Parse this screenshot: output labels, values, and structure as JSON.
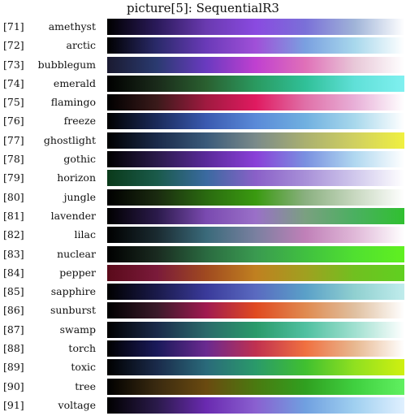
{
  "title": "picture[5]:  SequentialR3",
  "rows": [
    {
      "index": "[71]",
      "name": "amethyst",
      "colors": [
        "#000000",
        "#2a1a5a",
        "#6a3ab0",
        "#8a4ae0",
        "#7a70d8",
        "#a0b4d8",
        "#ffffff"
      ]
    },
    {
      "index": "[72]",
      "name": "arctic",
      "colors": [
        "#000000",
        "#2a2a6a",
        "#6a3ab8",
        "#a050d8",
        "#7aa0e0",
        "#a8d8ec",
        "#ffffff"
      ]
    },
    {
      "index": "[73]",
      "name": "bubblegum",
      "colors": [
        "#1a1a30",
        "#2a3a70",
        "#6a3ac0",
        "#c040d0",
        "#e070b8",
        "#e8c8d8",
        "#ffffff"
      ]
    },
    {
      "index": "[74]",
      "name": "emerald",
      "colors": [
        "#000000",
        "#1a2a1a",
        "#2a6030",
        "#2a9a60",
        "#30c098",
        "#60e0d8",
        "#80f0f0"
      ]
    },
    {
      "index": "[75]",
      "name": "flamingo",
      "colors": [
        "#000000",
        "#3a1a1a",
        "#a01a40",
        "#e01a60",
        "#e070a8",
        "#e8b0d8",
        "#ffffff"
      ]
    },
    {
      "index": "[76]",
      "name": "freeze",
      "colors": [
        "#000000",
        "#1a2a5a",
        "#3a5ab0",
        "#5a8ad8",
        "#70b0e0",
        "#a8d8ec",
        "#ffffff"
      ]
    },
    {
      "index": "[77]",
      "name": "ghostlight",
      "colors": [
        "#000000",
        "#1a2a4a",
        "#3a5a7a",
        "#7a8a8a",
        "#aab070",
        "#d0d060",
        "#f0f040"
      ]
    },
    {
      "index": "[78]",
      "name": "gothic",
      "colors": [
        "#000000",
        "#2a1a4a",
        "#5a2a9a",
        "#8a40d8",
        "#7a90e0",
        "#b0d8f0",
        "#ffffff"
      ]
    },
    {
      "index": "[79]",
      "name": "horizon",
      "colors": [
        "#0a3a1a",
        "#1a5a4a",
        "#3a6aa0",
        "#8a60c8",
        "#a890d8",
        "#d0c8ec",
        "#ffffff"
      ]
    },
    {
      "index": "[80]",
      "name": "jungle",
      "colors": [
        "#000000",
        "#1a2a10",
        "#2a6a10",
        "#3a9a10",
        "#8ab080",
        "#c8d8c0",
        "#ffffff"
      ]
    },
    {
      "index": "[81]",
      "name": "lavender",
      "colors": [
        "#000000",
        "#2a1a4a",
        "#7a4ab0",
        "#9a70c8",
        "#7aa080",
        "#4ab060",
        "#30c030"
      ]
    },
    {
      "index": "[82]",
      "name": "lilac",
      "colors": [
        "#000000",
        "#1a2a30",
        "#3a6a7a",
        "#7a80a0",
        "#c080b8",
        "#e0b8d8",
        "#ffffff"
      ]
    },
    {
      "index": "[83]",
      "name": "nuclear",
      "colors": [
        "#000000",
        "#1a2a20",
        "#2a6a40",
        "#3a9a50",
        "#40c040",
        "#50e030",
        "#60f020"
      ]
    },
    {
      "index": "[84]",
      "name": "pepper",
      "colors": [
        "#5a0a1a",
        "#7a1a3a",
        "#a04a20",
        "#c08020",
        "#a0a020",
        "#70c020",
        "#60d020"
      ]
    },
    {
      "index": "[85]",
      "name": "sapphire",
      "colors": [
        "#000000",
        "#1a1a4a",
        "#3a3a9a",
        "#5a6ac0",
        "#5aa0c8",
        "#90d0d0",
        "#c0ecec"
      ]
    },
    {
      "index": "[86]",
      "name": "sunburst",
      "colors": [
        "#000000",
        "#3a1a2a",
        "#a01a50",
        "#e04a20",
        "#e08a50",
        "#e0c0a0",
        "#ffffff"
      ]
    },
    {
      "index": "[87]",
      "name": "swamp",
      "colors": [
        "#000000",
        "#1a2a4a",
        "#2a6a6a",
        "#2a9a6a",
        "#50c0a0",
        "#a0e0d0",
        "#ffffff"
      ]
    },
    {
      "index": "[88]",
      "name": "torch",
      "colors": [
        "#000000",
        "#1a1a5a",
        "#6a2a90",
        "#c03050",
        "#f07040",
        "#e8b890",
        "#ffffff"
      ]
    },
    {
      "index": "[89]",
      "name": "toxic",
      "colors": [
        "#000000",
        "#1a2a4a",
        "#2a6a7a",
        "#2a9a6a",
        "#40c030",
        "#90e020",
        "#d0f010"
      ]
    },
    {
      "index": "[90]",
      "name": "tree",
      "colors": [
        "#000000",
        "#3a2a10",
        "#6a4a10",
        "#4a7a10",
        "#30a020",
        "#40d040",
        "#60f060"
      ]
    },
    {
      "index": "[91]",
      "name": "voltage",
      "colors": [
        "#000000",
        "#2a1a4a",
        "#6a2ab0",
        "#8a60d0",
        "#70a0e0",
        "#a0d0f0",
        "#e0f0ff"
      ]
    }
  ]
}
